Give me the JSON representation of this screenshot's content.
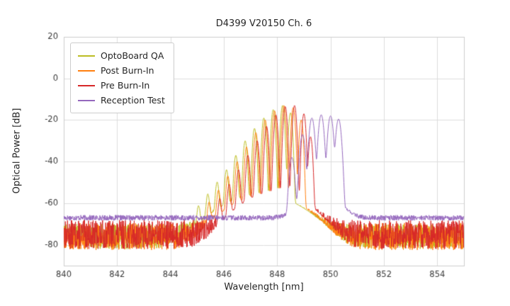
{
  "title": "D4399 V20150 Ch. 6",
  "chart_data": {
    "type": "line",
    "title": "D4399 V20150 Ch. 6",
    "xlabel": "Wavelength [nm]",
    "ylabel": "Optical Power [dB]",
    "xlim": [
      840,
      855
    ],
    "ylim": [
      -90,
      20
    ],
    "xticks": [
      840,
      842,
      844,
      846,
      848,
      850,
      852,
      854
    ],
    "yticks": [
      20,
      0,
      -20,
      -40,
      -60,
      -80
    ],
    "grid": true,
    "grid_color": "#dcdcdc",
    "frame_color": "#cccccc",
    "legend_position": "upper-left",
    "sample_step_nm": 0.01,
    "series": [
      {
        "name": "OptoBoard QA",
        "color": "#bcbd22",
        "baseline_db": -76,
        "noise_db": 6,
        "seed": 7,
        "mode_sigma_nm": 0.055,
        "pedestal": {
          "center_nm": 847.4,
          "sigma_nm": 1.3,
          "peak_db": -56
        },
        "modes": [
          [
            845.05,
            -62
          ],
          [
            845.4,
            -56
          ],
          [
            845.75,
            -50
          ],
          [
            846.1,
            -44
          ],
          [
            846.45,
            -37
          ],
          [
            846.8,
            -30
          ],
          [
            847.15,
            -24
          ],
          [
            847.5,
            -19
          ],
          [
            847.85,
            -15
          ],
          [
            848.2,
            -13
          ],
          [
            848.5,
            -16.5
          ]
        ]
      },
      {
        "name": "Post Burn-In",
        "color": "#ff7f0e",
        "baseline_db": -76,
        "noise_db": 6.5,
        "seed": 11,
        "mode_sigma_nm": 0.055,
        "pedestal": {
          "center_nm": 847.6,
          "sigma_nm": 1.2,
          "peak_db": -56
        },
        "modes": [
          [
            845.45,
            -60
          ],
          [
            845.8,
            -54
          ],
          [
            846.15,
            -47
          ],
          [
            846.5,
            -40
          ],
          [
            846.85,
            -33
          ],
          [
            847.2,
            -26
          ],
          [
            847.55,
            -20
          ],
          [
            847.9,
            -15.5
          ],
          [
            848.25,
            -13
          ],
          [
            848.6,
            -14
          ],
          [
            848.9,
            -20
          ]
        ]
      },
      {
        "name": "Pre Burn-In",
        "color": "#d62728",
        "baseline_db": -75,
        "noise_db": 7,
        "seed": 13,
        "mode_sigma_nm": 0.055,
        "pedestal": {
          "center_nm": 847.9,
          "sigma_nm": 1.1,
          "peak_db": -55
        },
        "modes": [
          [
            845.85,
            -58
          ],
          [
            846.2,
            -51
          ],
          [
            846.55,
            -44
          ],
          [
            846.9,
            -37
          ],
          [
            847.25,
            -30
          ],
          [
            847.6,
            -23
          ],
          [
            847.95,
            -17.5
          ],
          [
            848.3,
            -13.5
          ],
          [
            848.65,
            -13
          ],
          [
            849.0,
            -17
          ],
          [
            849.25,
            -28
          ]
        ]
      },
      {
        "name": "Reception Test",
        "color": "#9467bd",
        "baseline_db": -67,
        "noise_db": 1.3,
        "seed": 17,
        "mode_sigma_nm": 0.075,
        "pedestal": {
          "center_nm": 849.6,
          "sigma_nm": 0.7,
          "peak_db": -56
        },
        "modes": [
          [
            848.55,
            -38
          ],
          [
            848.95,
            -27
          ],
          [
            849.3,
            -19
          ],
          [
            849.65,
            -17.5
          ],
          [
            850.0,
            -18
          ],
          [
            850.3,
            -19.5
          ]
        ]
      }
    ]
  }
}
